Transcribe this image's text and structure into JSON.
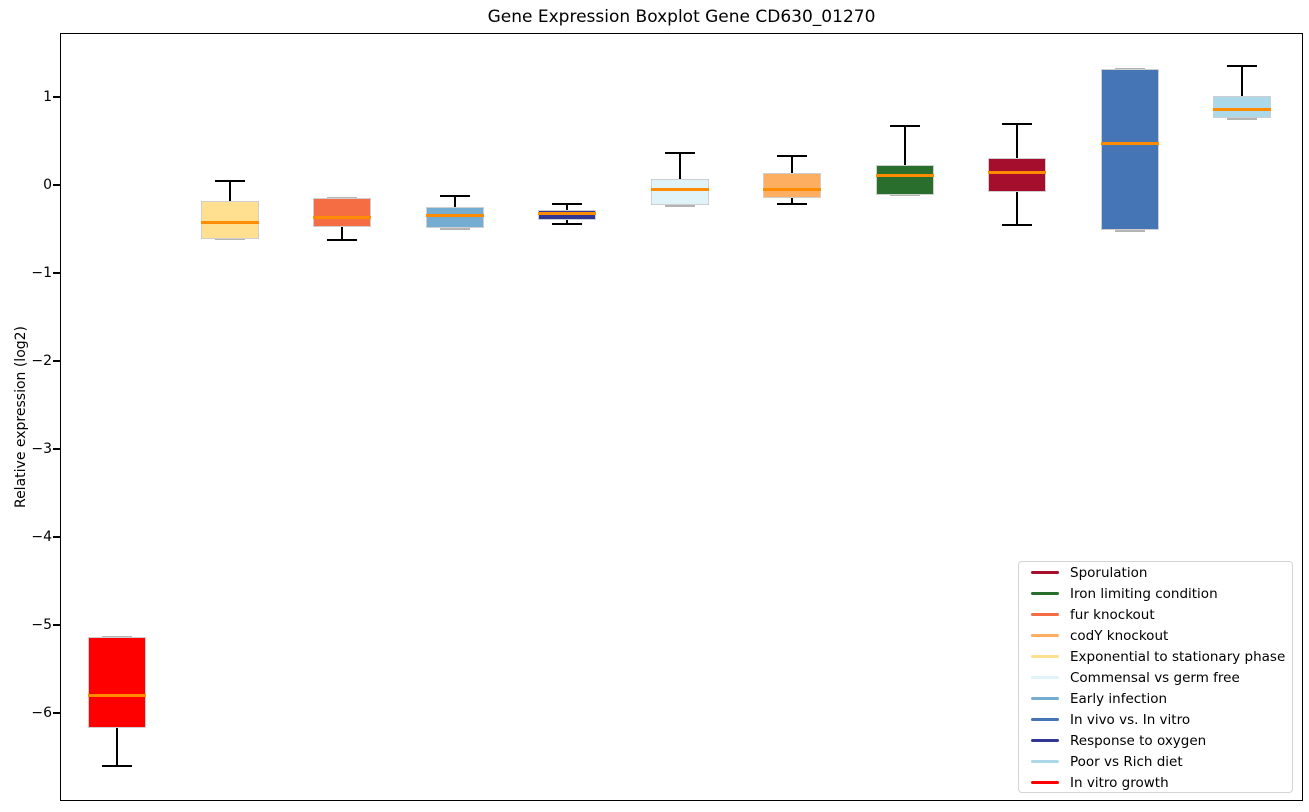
{
  "chart_data": {
    "type": "boxplot",
    "title": "Gene Expression Boxplot Gene CD630_01270",
    "xlabel": "",
    "ylabel": "Relative expression (log2)",
    "ylim": [
      -7.0,
      1.73
    ],
    "grid": false,
    "legend_position": "lower right",
    "median_color": "#FF8C00",
    "whisker_color": "#000000",
    "box_edge_color": "#cfcfcf",
    "yticks": [
      1,
      0,
      -1,
      -2,
      -3,
      -4,
      -5,
      -6
    ],
    "ytick_labels": [
      "1",
      "0",
      "−1",
      "−2",
      "−3",
      "−4",
      "−5",
      "−6"
    ],
    "xticks": [],
    "series": [
      {
        "name": "In vitro growth",
        "color": "#FF0000",
        "whisker_low": -6.6,
        "q1": -6.17,
        "median": -5.8,
        "q3": -5.14,
        "whisker_high": -5.14
      },
      {
        "name": "Exponential to stationary phase",
        "color": "#FEE090",
        "whisker_low": -0.61,
        "q1": -0.61,
        "median": -0.42,
        "q3": -0.18,
        "whisker_high": 0.05
      },
      {
        "name": "fur knockout",
        "color": "#F46D43",
        "whisker_low": -0.62,
        "q1": -0.48,
        "median": -0.37,
        "q3": -0.15,
        "whisker_high": -0.15
      },
      {
        "name": "Early infection",
        "color": "#74ADD1",
        "whisker_low": -0.49,
        "q1": -0.49,
        "median": -0.34,
        "q3": -0.25,
        "whisker_high": -0.12
      },
      {
        "name": "Response to oxygen",
        "color": "#313695",
        "whisker_low": -0.44,
        "q1": -0.4,
        "median": -0.32,
        "q3": -0.28,
        "whisker_high": -0.21
      },
      {
        "name": "Commensal vs germ free",
        "color": "#E0F3F8",
        "whisker_low": -0.23,
        "q1": -0.23,
        "median": -0.05,
        "q3": 0.07,
        "whisker_high": 0.37
      },
      {
        "name": "codY knockout",
        "color": "#FDAE61",
        "whisker_low": -0.21,
        "q1": -0.15,
        "median": -0.05,
        "q3": 0.14,
        "whisker_high": 0.33
      },
      {
        "name": "Iron limiting condition",
        "color": "#2A6E2E",
        "whisker_low": -0.11,
        "q1": -0.11,
        "median": 0.11,
        "q3": 0.23,
        "whisker_high": 0.67
      },
      {
        "name": "Sporulation",
        "color": "#A50F2D",
        "whisker_low": -0.45,
        "q1": -0.08,
        "median": 0.14,
        "q3": 0.31,
        "whisker_high": 0.69
      },
      {
        "name": "In vivo vs. In vitro",
        "color": "#4575B4",
        "whisker_low": -0.51,
        "q1": -0.51,
        "median": 0.47,
        "q3": 1.32,
        "whisker_high": 1.32
      },
      {
        "name": "Poor vs Rich diet",
        "color": "#ABD9E9",
        "whisker_low": 0.76,
        "q1": 0.76,
        "median": 0.86,
        "q3": 1.01,
        "whisker_high": 1.35
      }
    ],
    "legend": [
      {
        "label": "Sporulation",
        "color": "#A50F2D"
      },
      {
        "label": "Iron limiting condition",
        "color": "#2A6E2E"
      },
      {
        "label": "fur knockout",
        "color": "#F46D43"
      },
      {
        "label": "codY knockout",
        "color": "#FDAE61"
      },
      {
        "label": "Exponential to stationary phase",
        "color": "#FEE090"
      },
      {
        "label": "Commensal vs germ free",
        "color": "#E0F3F8"
      },
      {
        "label": "Early infection",
        "color": "#74ADD1"
      },
      {
        "label": "In vivo vs. In vitro",
        "color": "#4575B4"
      },
      {
        "label": "Response to oxygen",
        "color": "#313695"
      },
      {
        "label": "Poor vs Rich diet",
        "color": "#ABD9E9"
      },
      {
        "label": "In vitro growth",
        "color": "#FF0000"
      }
    ]
  }
}
